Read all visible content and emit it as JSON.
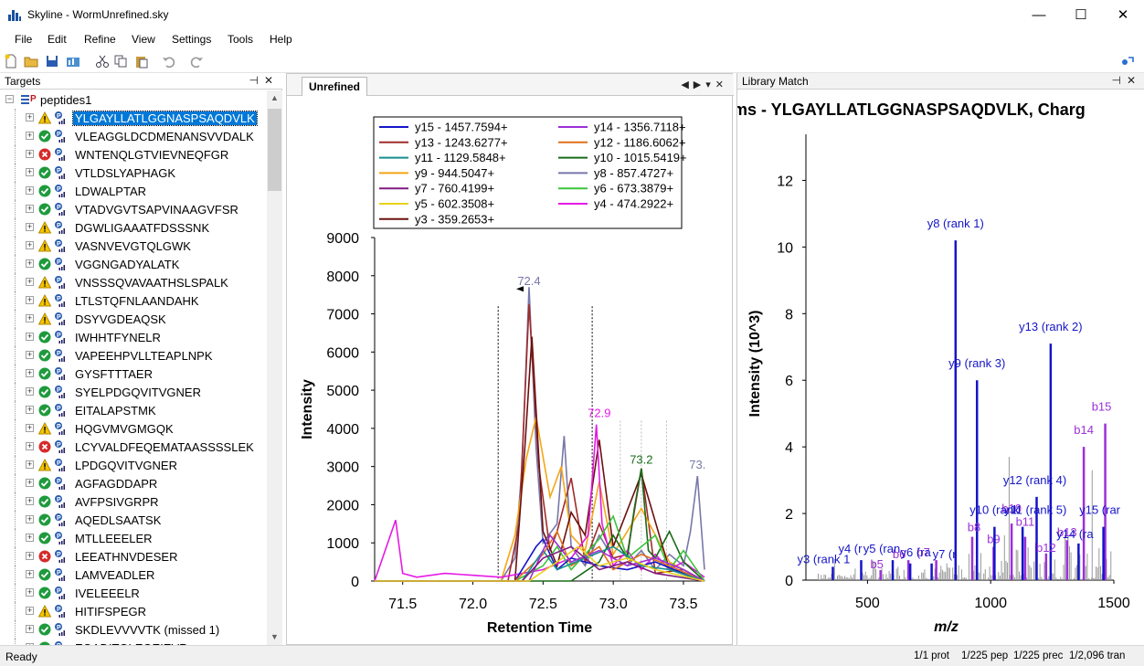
{
  "window": {
    "title": "Skyline - WormUnrefined.sky",
    "minimize": "—",
    "maximize": "☐",
    "close": "✕"
  },
  "menu": [
    "File",
    "Edit",
    "Refine",
    "View",
    "Settings",
    "Tools",
    "Help"
  ],
  "toolbar_icons": [
    "new-file-icon",
    "open-folder-icon",
    "save-icon",
    "import-icon",
    "cut-icon",
    "copy-icon",
    "paste-icon",
    "undo-icon",
    "redo-icon",
    "upload-icon"
  ],
  "targets": {
    "title": "Targets",
    "root": "peptides1",
    "peptides": [
      {
        "seq": "YLGAYLLATLGGNASPSAQDVLK",
        "status": "warn",
        "selected": true
      },
      {
        "seq": "VLEAGGLDCDMENANSVVDALK",
        "status": "ok"
      },
      {
        "seq": "WNTENQLGTVIEVNEQFGR",
        "status": "error"
      },
      {
        "seq": "VTLDSLYAPHAGK",
        "status": "ok"
      },
      {
        "seq": "LDWALPTAR",
        "status": "ok"
      },
      {
        "seq": "VTADVGVTSAPVINAAGVFSR",
        "status": "ok"
      },
      {
        "seq": "DGWLIGAAATFDSSSNK",
        "status": "warn"
      },
      {
        "seq": "VASNVEVGTQLGWK",
        "status": "warn"
      },
      {
        "seq": "VGGNGADYALATK",
        "status": "ok"
      },
      {
        "seq": "VNSSSQVAVAATHSLSPALK",
        "status": "warn"
      },
      {
        "seq": "LTLSTQFNLAANDAHK",
        "status": "warn"
      },
      {
        "seq": "DSYVGDEAQSK",
        "status": "warn"
      },
      {
        "seq": "IWHHTFYNELR",
        "status": "ok"
      },
      {
        "seq": "VAPEEHPVLLTEAPLNPK",
        "status": "ok"
      },
      {
        "seq": "GYSFTTTAER",
        "status": "ok"
      },
      {
        "seq": "SYELPDGQVITVGNER",
        "status": "ok"
      },
      {
        "seq": "EITALAPSTMK",
        "status": "ok"
      },
      {
        "seq": "HQGVMVGMGQK",
        "status": "warn"
      },
      {
        "seq": "LCYVALDFEQEMATAASSSSLEK",
        "status": "error"
      },
      {
        "seq": "LPDGQVITVGNER",
        "status": "warn"
      },
      {
        "seq": "AGFAGDDAPR",
        "status": "ok"
      },
      {
        "seq": "AVFPSIVGRPR",
        "status": "ok"
      },
      {
        "seq": "AQEDLSAATSK",
        "status": "ok"
      },
      {
        "seq": "MTLLEEELER",
        "status": "ok"
      },
      {
        "seq": "LEEATHNVDESER",
        "status": "error"
      },
      {
        "seq": "LAMVEADLER",
        "status": "ok"
      },
      {
        "seq": "IVELEEELR",
        "status": "ok"
      },
      {
        "seq": "HITIFSPEGR",
        "status": "warn"
      },
      {
        "seq": "SKDLEVVVVTK (missed 1)",
        "status": "ok"
      },
      {
        "seq": "EQADITGLEGEIEVR",
        "status": "ok"
      }
    ]
  },
  "chromatogram": {
    "tab": "Unrefined",
    "chart_data": {
      "type": "line",
      "xlabel": "Retention Time",
      "ylabel": "Intensity",
      "xlim": [
        71.3,
        73.65
      ],
      "ylim": [
        0,
        9000
      ],
      "xticks": [
        "71.5",
        "72.0",
        "72.5",
        "73.0",
        "73.5"
      ],
      "yticks": [
        "0",
        "1000",
        "2000",
        "3000",
        "4000",
        "5000",
        "6000",
        "7000",
        "8000",
        "9000"
      ],
      "legend": [
        {
          "name": "y15 - 1457.7594+",
          "color": "#1515c8"
        },
        {
          "name": "y14 - 1356.7118+",
          "color": "#9b30d9"
        },
        {
          "name": "y13 - 1243.6277+",
          "color": "#a02c2c"
        },
        {
          "name": "y12 - 1186.6062+",
          "color": "#e0701a"
        },
        {
          "name": "y11 - 1129.5848+",
          "color": "#168f8f"
        },
        {
          "name": "y10 - 1015.5419+",
          "color": "#1a6b1a"
        },
        {
          "name": "y9 - 944.5047+",
          "color": "#f5a516"
        },
        {
          "name": "y8 - 857.4727+",
          "color": "#7777aa"
        },
        {
          "name": "y7 - 760.4199+",
          "color": "#801a80"
        },
        {
          "name": "y6 - 673.3879+",
          "color": "#3ac43a"
        },
        {
          "name": "y5 - 602.3508+",
          "color": "#e8d21a"
        },
        {
          "name": "y4 - 474.2922+",
          "color": "#e51ae5"
        },
        {
          "name": "y3 - 359.2653+",
          "color": "#6b1010"
        }
      ],
      "peak_labels": [
        {
          "text": "72.4",
          "x": 72.4,
          "y": 7750,
          "color": "#7777aa"
        },
        {
          "text": "72.9",
          "x": 72.9,
          "y": 4300,
          "color": "#e51ae5"
        },
        {
          "text": "73.2",
          "x": 73.2,
          "y": 3080,
          "color": "#1a6b1a"
        },
        {
          "text": "73.",
          "x": 73.6,
          "y": 2950,
          "color": "#7777aa"
        }
      ],
      "integration_bounds": [
        72.18,
        72.85
      ],
      "series": [
        {
          "name": "y8",
          "color": "#7777aa",
          "x": [
            71.3,
            72.2,
            72.3,
            72.35,
            72.4,
            72.45,
            72.5,
            72.6,
            72.65,
            72.7,
            72.8,
            72.9,
            73.0,
            73.1,
            73.2,
            73.3,
            73.4,
            73.5,
            73.55,
            73.6,
            73.65
          ],
          "y": [
            0,
            0,
            600,
            3000,
            7700,
            3500,
            1000,
            1500,
            3800,
            900,
            400,
            1200,
            600,
            400,
            800,
            300,
            700,
            400,
            1300,
            2750,
            300
          ]
        },
        {
          "name": "y13",
          "color": "#a02c2c",
          "x": [
            71.3,
            72.25,
            72.33,
            72.4,
            72.47,
            72.55,
            72.6,
            72.7,
            72.8,
            72.9,
            73.0,
            73.1,
            73.2,
            73.3,
            73.5,
            73.65
          ],
          "y": [
            0,
            0,
            1500,
            7250,
            3000,
            800,
            1300,
            2700,
            500,
            1500,
            600,
            700,
            2950,
            200,
            300,
            0
          ]
        },
        {
          "name": "y9",
          "color": "#f5a516",
          "x": [
            71.3,
            72.2,
            72.3,
            72.38,
            72.45,
            72.55,
            72.63,
            72.7,
            72.8,
            72.9,
            73.0,
            73.2,
            73.4,
            73.65
          ],
          "y": [
            0,
            0,
            1200,
            3200,
            4300,
            2200,
            3000,
            1200,
            800,
            2600,
            700,
            1900,
            500,
            0
          ]
        },
        {
          "name": "y3",
          "color": "#6b1010",
          "x": [
            71.3,
            72.3,
            72.37,
            72.42,
            72.5,
            72.6,
            72.7,
            72.8,
            72.9,
            73.0,
            73.2,
            73.4,
            73.65
          ],
          "y": [
            0,
            0,
            3500,
            6400,
            1300,
            400,
            1800,
            1200,
            3700,
            900,
            2800,
            300,
            0
          ]
        },
        {
          "name": "y4",
          "color": "#e51ae5",
          "x": [
            71.3,
            71.45,
            71.5,
            71.6,
            71.8,
            72.0,
            72.2,
            72.5,
            72.7,
            72.82,
            72.88,
            72.92,
            73.0,
            73.1,
            73.2,
            73.3,
            73.4,
            73.5,
            73.65
          ],
          "y": [
            0,
            1600,
            200,
            100,
            200,
            150,
            100,
            300,
            600,
            1200,
            4100,
            1500,
            400,
            800,
            300,
            700,
            300,
            500,
            100
          ]
        },
        {
          "name": "y10",
          "color": "#1a6b1a",
          "x": [
            71.3,
            72.7,
            72.9,
            73.0,
            73.1,
            73.15,
            73.2,
            73.25,
            73.3,
            73.4,
            73.5,
            73.65
          ],
          "y": [
            0,
            0,
            500,
            1200,
            600,
            1900,
            2950,
            800,
            600,
            1300,
            500,
            0
          ]
        },
        {
          "name": "y6",
          "color": "#3ac43a",
          "x": [
            71.3,
            72.3,
            72.5,
            72.6,
            72.7,
            72.9,
            73.0,
            73.1,
            73.3,
            73.4,
            73.5,
            73.65
          ],
          "y": [
            0,
            0,
            400,
            900,
            300,
            1100,
            1700,
            600,
            1200,
            300,
            800,
            0
          ]
        },
        {
          "name": "y15",
          "color": "#1515c8",
          "x": [
            71.3,
            72.3,
            72.45,
            72.5,
            72.6,
            72.7,
            72.9,
            73.1,
            73.3,
            73.5,
            73.65
          ],
          "y": [
            0,
            0,
            900,
            1100,
            300,
            600,
            400,
            300,
            500,
            200,
            0
          ]
        },
        {
          "name": "y12",
          "color": "#e0701a",
          "x": [
            71.3,
            72.3,
            72.5,
            72.6,
            72.7,
            72.9,
            73.0,
            73.2,
            73.4,
            73.65
          ],
          "y": [
            0,
            0,
            700,
            1300,
            400,
            900,
            300,
            700,
            400,
            0
          ]
        },
        {
          "name": "y11",
          "color": "#168f8f",
          "x": [
            71.3,
            72.35,
            72.5,
            72.6,
            72.8,
            73.0,
            73.2,
            73.4,
            73.65
          ],
          "y": [
            0,
            0,
            800,
            300,
            600,
            900,
            400,
            300,
            0
          ]
        },
        {
          "name": "y14",
          "color": "#9b30d9",
          "x": [
            71.3,
            72.4,
            72.55,
            72.7,
            72.9,
            73.1,
            73.3,
            73.5,
            73.65
          ],
          "y": [
            0,
            0,
            1200,
            500,
            800,
            400,
            600,
            300,
            0
          ]
        },
        {
          "name": "y7",
          "color": "#801a80",
          "x": [
            71.3,
            72.35,
            72.5,
            72.7,
            72.9,
            73.1,
            73.3,
            73.65
          ],
          "y": [
            0,
            0,
            600,
            900,
            300,
            500,
            200,
            0
          ]
        },
        {
          "name": "y5",
          "color": "#e8d21a",
          "x": [
            71.3,
            72.4,
            72.6,
            72.75,
            72.9,
            73.1,
            73.3,
            73.65
          ],
          "y": [
            0,
            0,
            500,
            900,
            400,
            600,
            300,
            0
          ]
        }
      ]
    }
  },
  "library": {
    "title": "Library Match",
    "chart_data": {
      "type": "bar",
      "title": "ms - YLGAYLLATLGGNASPSAQDVLK, Charg",
      "xlabel": "m/z",
      "ylabel": "Intensity (10^3)",
      "xlim": [
        250,
        1500
      ],
      "ylim": [
        0,
        13
      ],
      "xticks": [
        "500",
        "1000",
        "1500"
      ],
      "yticks": [
        "0",
        "2",
        "4",
        "6",
        "8",
        "10",
        "12"
      ],
      "peaks": [
        {
          "label": "y8 (rank 1)",
          "mz": 857.5,
          "intensity": 10.2,
          "color": "#1515c8"
        },
        {
          "label": "y13 (rank 2)",
          "mz": 1243.6,
          "intensity": 7.1,
          "color": "#1515c8"
        },
        {
          "label": "y9 (rank 3)",
          "mz": 944.5,
          "intensity": 6.0,
          "color": "#1515c8"
        },
        {
          "label": "y12 (rank 4)",
          "mz": 1186.6,
          "intensity": 2.5,
          "color": "#1515c8"
        },
        {
          "label": "b15",
          "mz": 1465,
          "intensity": 4.7,
          "color": "#9b30d9"
        },
        {
          "label": "b14",
          "mz": 1378,
          "intensity": 4.0,
          "color": "#9b30d9"
        },
        {
          "label": "b10",
          "mz": 1085,
          "intensity": 1.7,
          "color": "#9b30d9"
        },
        {
          "label": "b11",
          "mz": 1140,
          "intensity": 1.3,
          "color": "#9b30d9"
        },
        {
          "label": "b9",
          "mz": 1012,
          "intensity": 1.0,
          "color": "#9b30d9"
        },
        {
          "label": "b8",
          "mz": 925,
          "intensity": 1.3,
          "color": "#9b30d9"
        },
        {
          "label": "b12",
          "mz": 1225,
          "intensity": 0.8,
          "color": "#9b30d9"
        },
        {
          "label": "b13",
          "mz": 1310,
          "intensity": 1.2,
          "color": "#9b30d9"
        },
        {
          "label": "y10 (rank",
          "mz": 1015.5,
          "intensity": 1.6,
          "color": "#1515c8"
        },
        {
          "label": "y11 (rank 5)",
          "mz": 1129.6,
          "intensity": 1.6,
          "color": "#1515c8"
        },
        {
          "label": "y15 (rar",
          "mz": 1457.8,
          "intensity": 1.6,
          "color": "#1515c8"
        },
        {
          "label": "y14 (ra",
          "mz": 1356.7,
          "intensity": 1.1,
          "color": "#1515c8"
        },
        {
          "label": "y3 (rank 1",
          "mz": 359.3,
          "intensity": 0.4,
          "color": "#1515c8"
        },
        {
          "label": "y4 (r",
          "mz": 474.3,
          "intensity": 0.6,
          "color": "#1515c8"
        },
        {
          "label": "y5 (ran",
          "mz": 602.4,
          "intensity": 0.6,
          "color": "#1515c8"
        },
        {
          "label": "b5",
          "mz": 553,
          "intensity": 0.3,
          "color": "#9b30d9"
        },
        {
          "label": "b6",
          "mz": 666,
          "intensity": 0.6,
          "color": "#9b30d9"
        },
        {
          "label": "b7",
          "mz": 779,
          "intensity": 0.6,
          "color": "#9b30d9"
        },
        {
          "label": "y6 (ra",
          "mz": 673.4,
          "intensity": 0.5,
          "color": "#1515c8"
        },
        {
          "label": "y7 (r",
          "mz": 760.4,
          "intensity": 0.5,
          "color": "#1515c8"
        }
      ]
    }
  },
  "status": {
    "ready": "Ready",
    "prot": "1/1 prot",
    "pep": "1/225 pep",
    "prec": "1/225 prec",
    "tran": "1/2,096 tran"
  }
}
